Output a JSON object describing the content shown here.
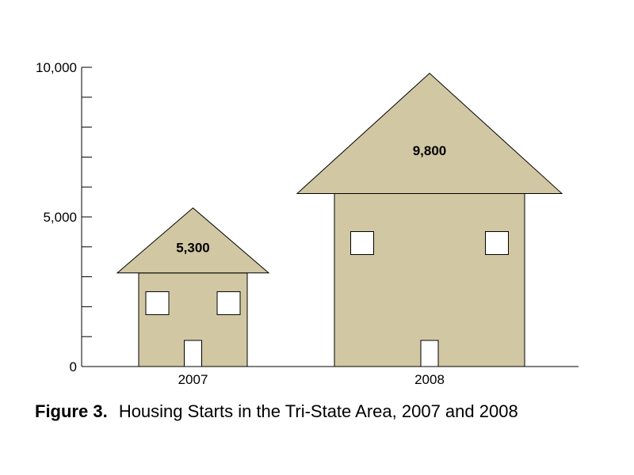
{
  "colors": {
    "house_fill": "#d1c7a3",
    "stroke": "#000000",
    "window": "#ffffff"
  },
  "caption": {
    "label": "Figure 3.",
    "text": "Housing Starts in the Tri-State Area, 2007 and 2008"
  },
  "chart_data": {
    "type": "bar",
    "categories": [
      "2007",
      "2008"
    ],
    "values": [
      5300,
      9800
    ],
    "value_labels": [
      "5,300",
      "9,800"
    ],
    "ylim": [
      0,
      10000
    ],
    "y_tick_labels": [
      "0",
      "5,000",
      "10,000"
    ],
    "y_tick_values": [
      0,
      5000,
      10000
    ],
    "y_minor_step": 1000,
    "grid": false
  }
}
